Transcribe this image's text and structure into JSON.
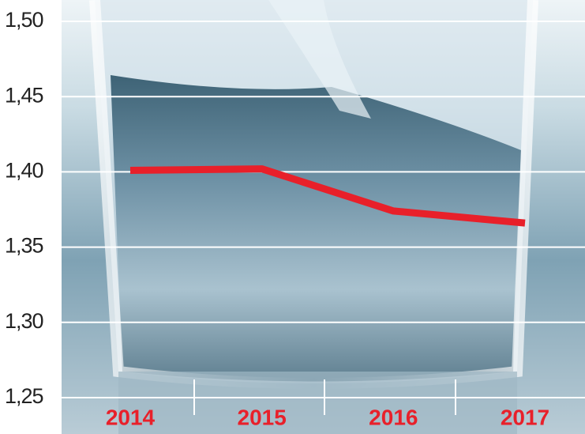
{
  "chart_data": {
    "type": "line",
    "categories": [
      "2014",
      "2015",
      "2016",
      "2017"
    ],
    "values": [
      1.401,
      1.402,
      1.374,
      1.366
    ],
    "color": "#e8202a",
    "category_color": "#e8202a",
    "ylim": [
      1.25,
      1.5
    ],
    "yticks": [
      {
        "value": 1.25,
        "label": "1,25"
      },
      {
        "value": 1.3,
        "label": "1,30"
      },
      {
        "value": 1.35,
        "label": "1,35"
      },
      {
        "value": 1.4,
        "label": "1,40"
      },
      {
        "value": 1.45,
        "label": "1,45"
      },
      {
        "value": 1.5,
        "label": "1,50"
      }
    ],
    "grid": true
  }
}
